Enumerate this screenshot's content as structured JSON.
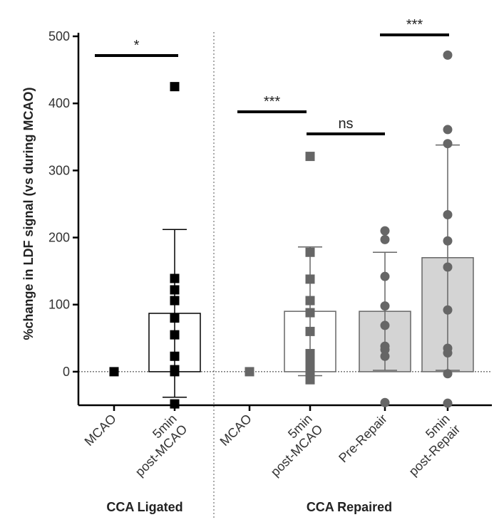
{
  "chart_data": {
    "type": "bar",
    "ylabel": "%change in LDF signal (vs during MCAO)",
    "categories": [
      "MCAO",
      "5min post-MCAO",
      "MCAO",
      "5min post-MCAO",
      "Pre-Repair",
      "5min post-Repair"
    ],
    "groups": [
      "CCA Ligated",
      "CCA Repaired"
    ],
    "values": [
      null,
      87,
      null,
      90,
      90,
      170
    ],
    "errors": [
      null,
      125,
      null,
      96,
      88,
      168
    ],
    "points": [
      [
        0
      ],
      [
        425,
        139,
        122,
        106,
        80,
        55,
        23,
        3,
        0,
        -48
      ],
      [
        0
      ],
      [
        321,
        178,
        138,
        106,
        88,
        60,
        27,
        14,
        5,
        -2,
        -12
      ],
      [
        210,
        197,
        142,
        98,
        69,
        38,
        33,
        23,
        -46
      ],
      [
        472,
        361,
        340,
        234,
        195,
        156,
        92,
        35,
        28,
        -3,
        -47
      ]
    ],
    "bar_fill": [
      "#ffffff",
      "#ffffff",
      "#ffffff",
      "#ffffff",
      "#d4d4d4",
      "#d4d4d4"
    ],
    "bar_stroke": [
      "#000000",
      "#000000",
      "#666666",
      "#666666",
      "#666666",
      "#666666"
    ],
    "marker": [
      "square",
      "square",
      "square",
      "square",
      "circle",
      "circle"
    ],
    "marker_color": [
      "#000000",
      "#000000",
      "#666666",
      "#666666",
      "#666666",
      "#666666"
    ],
    "annotations": [
      {
        "text": "*"
      },
      {
        "text": "***"
      },
      {
        "text": "ns"
      },
      {
        "text": "***"
      }
    ],
    "ylim": [
      -50,
      500
    ],
    "yticks": [
      0,
      100,
      200,
      300,
      400,
      500
    ]
  }
}
